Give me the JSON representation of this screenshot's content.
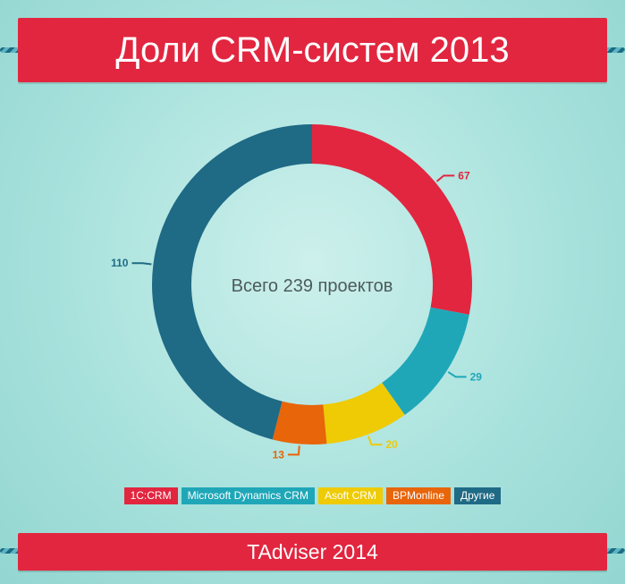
{
  "header": {
    "title": "Доли CRM-систем 2013"
  },
  "footer": {
    "source": "TAdviser 2014"
  },
  "chart_data": {
    "type": "pie",
    "variant": "donut",
    "title": "Доли CRM-систем 2013",
    "center_label": "Всего 239 проектов",
    "total": 239,
    "categories": [
      "1С:CRM",
      "Microsoft Dynamics CRM",
      "Asoft CRM",
      "BPMonline",
      "Другие"
    ],
    "values": [
      67,
      29,
      20,
      13,
      110
    ],
    "colors": [
      "#e2263f",
      "#1fa7b8",
      "#eecb05",
      "#e8650a",
      "#1f6a85"
    ],
    "legend_position": "bottom"
  }
}
